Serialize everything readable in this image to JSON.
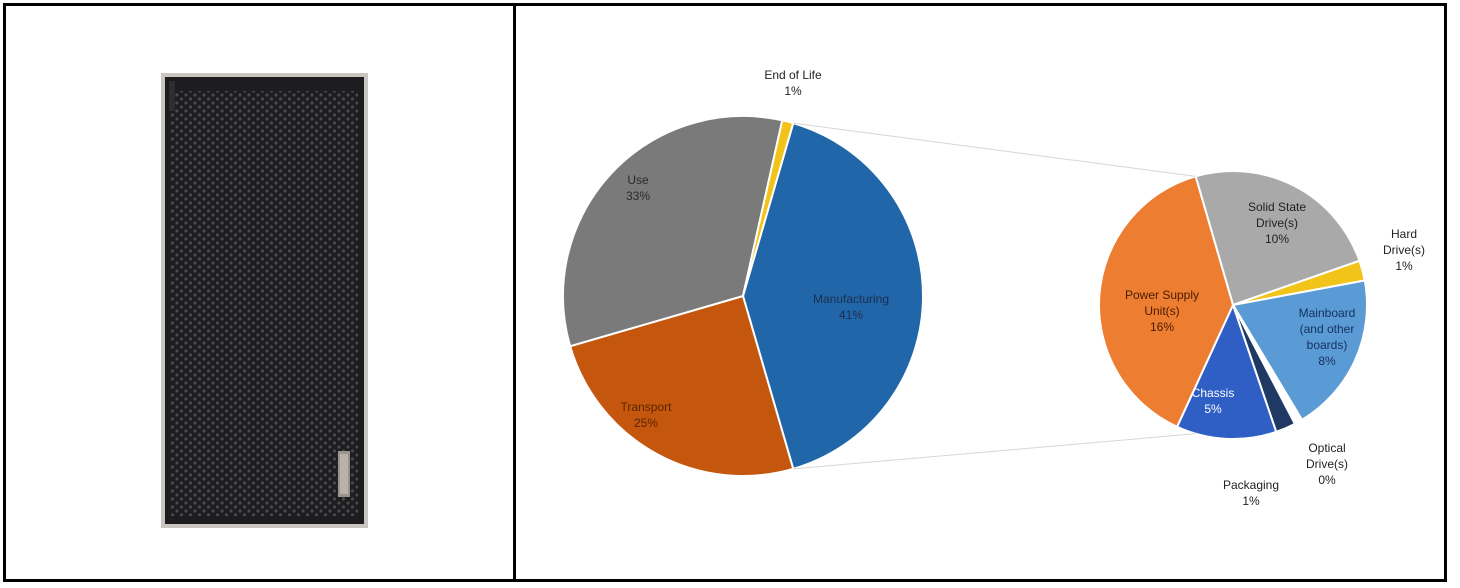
{
  "photo": {
    "icon": "desktop-tower-icon",
    "colors": {
      "case": "#1d1d1f",
      "frame": "#c9c5bf",
      "badge": "#9a958c"
    }
  },
  "chart_data": {
    "type": "pie",
    "variant": "pie-of-pie",
    "title": "",
    "main_pie": {
      "slices": [
        {
          "label": "Manufacturing",
          "value_label": "41%",
          "value": 41,
          "color": "#2166a8",
          "text_color": "#1b2f4f"
        },
        {
          "label": "Transport",
          "value_label": "25%",
          "value": 25,
          "color": "#c4560e",
          "text_color": "#5a2500"
        },
        {
          "label": "Use",
          "value_label": "33%",
          "value": 33,
          "color": "#7a7a7a",
          "text_color": "#2a2a2a"
        },
        {
          "label": "End of Life",
          "value_label": "1%",
          "value": 1,
          "color": "#f2c318",
          "text_color": "#222222"
        }
      ]
    },
    "breakdown_of": "Manufacturing",
    "secondary_pie": {
      "slices": [
        {
          "label": "Solid State Drive(s)",
          "value_label": "10%",
          "value": 10,
          "color": "#a9a9a9",
          "text_color": "#222222"
        },
        {
          "label": "Hard Drive(s)",
          "value_label": "1%",
          "value": 1,
          "color": "#f2c318",
          "text_color": "#222222"
        },
        {
          "label": "Mainboard (and other boards)",
          "value_label": "8%",
          "value": 8,
          "color": "#5b9bd5",
          "text_color": "#13315e"
        },
        {
          "label": "Optical Drive(s)",
          "value_label": "0%",
          "value": 0.4,
          "color": "#ffffff",
          "text_color": "#222222"
        },
        {
          "label": "Packaging",
          "value_label": "1%",
          "value": 1,
          "color": "#1f3864",
          "text_color": "#222222"
        },
        {
          "label": "Chassis",
          "value_label": "5%",
          "value": 5,
          "color": "#2f5fc4",
          "text_color": "#ffffff"
        },
        {
          "label": "Power Supply Unit(s)",
          "value_label": "16%",
          "value": 16,
          "color": "#ed7d31",
          "text_color": "#4a1c00"
        }
      ]
    }
  }
}
